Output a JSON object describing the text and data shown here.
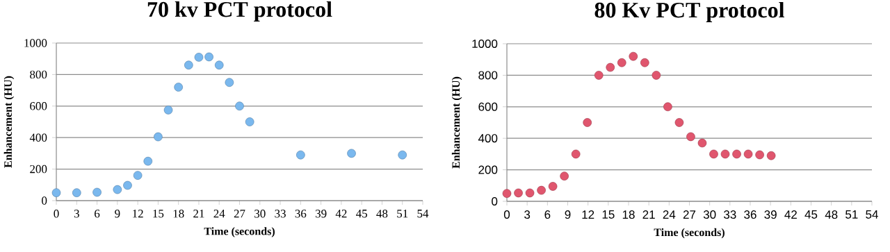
{
  "chart_data": [
    {
      "type": "scatter",
      "title": "70 kv PCT protocol",
      "xlabel": "Time (seconds)",
      "ylabel": "Enhancement (HU)",
      "x": [
        0,
        3,
        6,
        9,
        10.5,
        12,
        13.5,
        15,
        16.5,
        18,
        19.5,
        21,
        22.5,
        24,
        25.5,
        27,
        28.5,
        36,
        43.5,
        51
      ],
      "values": [
        50,
        50,
        53,
        70,
        97,
        160,
        250,
        405,
        575,
        720,
        860,
        910,
        912,
        860,
        750,
        600,
        500,
        290,
        300,
        290
      ],
      "color": "#7ab8ee",
      "marker": "circle",
      "grid": "y",
      "xlim": [
        0,
        54
      ],
      "xticks": [
        0,
        3,
        6,
        9,
        12,
        15,
        18,
        21,
        24,
        27,
        30,
        33,
        36,
        39,
        42,
        45,
        48,
        51,
        54
      ],
      "ylim": [
        0,
        1000
      ],
      "yticks": [
        0,
        200,
        400,
        600,
        800,
        1000
      ]
    },
    {
      "type": "scatter",
      "title": "80 Kv PCT protocol",
      "xlabel": "Time (seconds)",
      "ylabel": "Enhancement (HU)",
      "x": [
        0,
        1.7,
        3.4,
        5.1,
        6.8,
        8.5,
        10.2,
        11.9,
        13.6,
        15.3,
        17,
        18.7,
        20.4,
        22.1,
        23.8,
        25.5,
        27.2,
        28.9,
        30.6,
        32.3,
        34,
        35.7,
        37.4,
        39.1
      ],
      "values": [
        50,
        53,
        53,
        70,
        95,
        160,
        300,
        500,
        800,
        850,
        880,
        920,
        880,
        800,
        600,
        500,
        410,
        370,
        300,
        300,
        300,
        300,
        295,
        290
      ],
      "color": "#e0566e",
      "marker": "circle",
      "grid": "y",
      "xlim": [
        0,
        54
      ],
      "xticks": [
        0,
        3,
        6,
        9,
        12,
        15,
        18,
        21,
        24,
        27,
        30,
        33,
        36,
        39,
        42,
        45,
        48,
        51,
        54
      ],
      "ylim": [
        0,
        1000
      ],
      "yticks": [
        0,
        200,
        400,
        600,
        800,
        1000
      ]
    }
  ]
}
